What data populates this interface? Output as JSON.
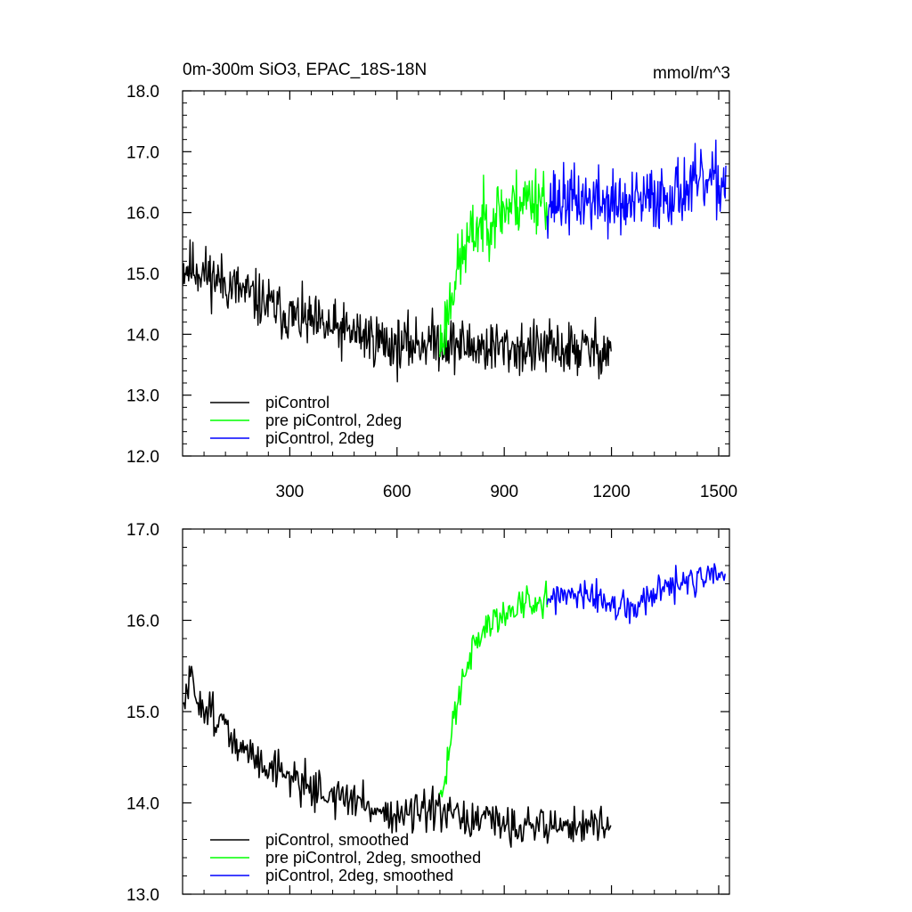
{
  "colors": {
    "piControl": "#000000",
    "pre_2deg": "#00ff00",
    "picontrol_2deg": "#0000ff",
    "axis": "#000000",
    "background": "#ffffff"
  },
  "chart_data": [
    {
      "id": "raw",
      "type": "line",
      "title": "0m-300m SiO3, EPAC_18S-18N",
      "units": "mmol/m^3",
      "xlim": [
        0,
        1530
      ],
      "ylim": [
        12.0,
        18.0
      ],
      "xticks": [
        300,
        600,
        900,
        1200,
        1500
      ],
      "xtick_labels": [
        "300",
        "600",
        "900",
        "1200",
        "1500"
      ],
      "yticks": [
        12.0,
        13.0,
        14.0,
        15.0,
        16.0,
        17.0,
        18.0
      ],
      "ytick_labels": [
        "12.0",
        "13.0",
        "14.0",
        "15.0",
        "16.0",
        "17.0",
        "18.0"
      ],
      "legend_position": "bottom-left",
      "series": [
        {
          "name": "piControl",
          "color": "#000000",
          "noise": 0.45,
          "seed": 11,
          "step": 2,
          "anchors": [
            [
              1,
              15.1
            ],
            [
              30,
              15.1
            ],
            [
              100,
              14.9
            ],
            [
              200,
              14.6
            ],
            [
              300,
              14.3
            ],
            [
              400,
              14.1
            ],
            [
              500,
              14.0
            ],
            [
              600,
              13.8
            ],
            [
              700,
              13.9
            ],
            [
              800,
              13.8
            ],
            [
              1000,
              13.75
            ],
            [
              1200,
              13.75
            ]
          ]
        },
        {
          "name": "pre piControl, 2deg",
          "color": "#00ff00",
          "noise": 0.55,
          "seed": 23,
          "step": 2,
          "anchors": [
            [
              720,
              13.8
            ],
            [
              740,
              14.3
            ],
            [
              760,
              14.9
            ],
            [
              790,
              15.4
            ],
            [
              830,
              15.8
            ],
            [
              880,
              16.0
            ],
            [
              950,
              16.2
            ],
            [
              1020,
              16.3
            ]
          ]
        },
        {
          "name": "piControl, 2deg",
          "color": "#0000ff",
          "noise": 0.55,
          "seed": 37,
          "step": 2,
          "anchors": [
            [
              1020,
              16.2
            ],
            [
              1150,
              16.2
            ],
            [
              1250,
              16.1
            ],
            [
              1350,
              16.3
            ],
            [
              1450,
              16.45
            ],
            [
              1520,
              16.5
            ]
          ]
        }
      ]
    },
    {
      "id": "smoothed",
      "type": "line",
      "xlim": [
        0,
        1530
      ],
      "ylim": [
        13.0,
        17.0
      ],
      "xticks": [
        300,
        600,
        900,
        1200,
        1500
      ],
      "yticks": [
        13.0,
        14.0,
        15.0,
        16.0,
        17.0
      ],
      "ytick_labels": [
        "13.0",
        "14.0",
        "15.0",
        "16.0",
        "17.0"
      ],
      "legend_position": "bottom-left",
      "series": [
        {
          "name": "piControl, smoothed",
          "color": "#000000",
          "noise": 0.22,
          "seed": 51,
          "step": 3,
          "anchors": [
            [
              1,
              15.0
            ],
            [
              20,
              15.35
            ],
            [
              50,
              15.1
            ],
            [
              100,
              14.95
            ],
            [
              150,
              14.6
            ],
            [
              200,
              14.5
            ],
            [
              300,
              14.3
            ],
            [
              400,
              14.1
            ],
            [
              500,
              14.0
            ],
            [
              600,
              13.85
            ],
            [
              700,
              13.9
            ],
            [
              800,
              13.8
            ],
            [
              1000,
              13.75
            ],
            [
              1200,
              13.75
            ]
          ]
        },
        {
          "name": "pre piControl, 2deg, smoothed",
          "color": "#00ff00",
          "noise": 0.2,
          "seed": 63,
          "step": 3,
          "anchors": [
            [
              720,
              13.95
            ],
            [
              740,
              14.4
            ],
            [
              760,
              15.0
            ],
            [
              790,
              15.5
            ],
            [
              830,
              15.85
            ],
            [
              880,
              16.0
            ],
            [
              950,
              16.2
            ],
            [
              1020,
              16.25
            ]
          ]
        },
        {
          "name": "piControl, 2deg, smoothed",
          "color": "#0000ff",
          "noise": 0.18,
          "seed": 77,
          "step": 3,
          "anchors": [
            [
              1020,
              16.25
            ],
            [
              1150,
              16.25
            ],
            [
              1250,
              16.1
            ],
            [
              1350,
              16.35
            ],
            [
              1450,
              16.45
            ],
            [
              1520,
              16.5
            ]
          ]
        }
      ]
    }
  ]
}
